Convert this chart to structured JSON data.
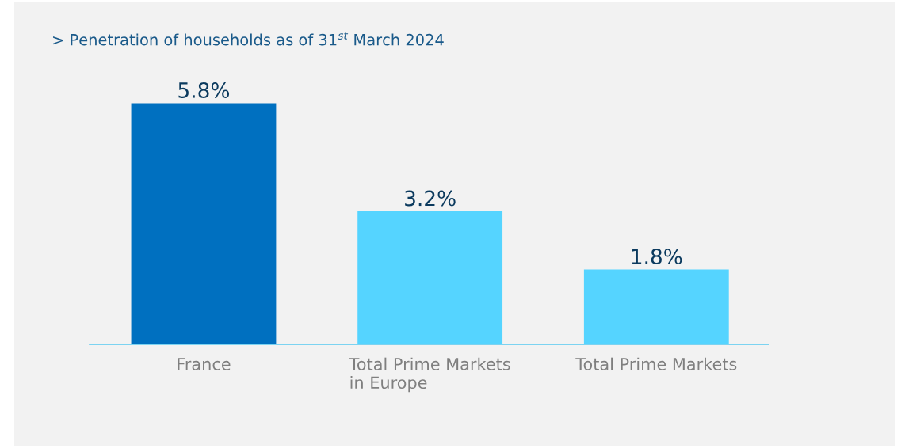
{
  "chart_data": {
    "type": "bar",
    "title": "> Penetration of households as of 31$^{st}$ March 2024",
    "categories": [
      "France",
      "Total Prime Markets\nin Europe",
      "Total Prime Markets"
    ],
    "values": [
      5.8,
      3.2,
      1.8
    ],
    "colors": [
      "#0070c0",
      "#55d4ff",
      "#55d4ff"
    ],
    "data_labels": true,
    "value_labels": [
      "5.8%",
      "3.2%",
      "1.8%"
    ],
    "grid": false,
    "legend": false
  }
}
